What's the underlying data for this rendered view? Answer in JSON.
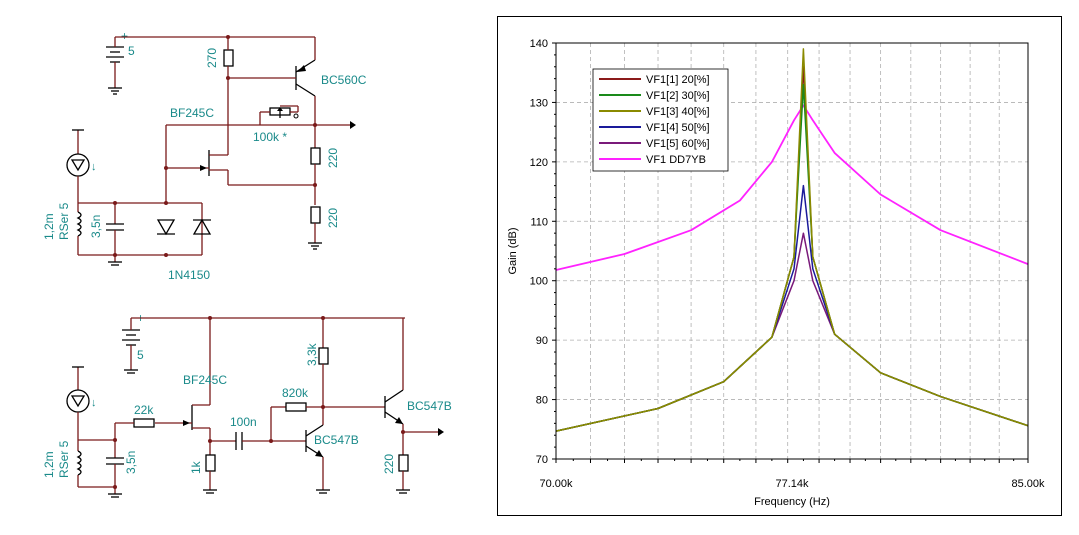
{
  "schematic_top": {
    "battery_label": "5",
    "r_top": "270",
    "q_pnp": "BC560C",
    "jfet": "BF245C",
    "pot": "100k *",
    "r_mid": "220",
    "r_bot": "220",
    "coil_value": "1,2m",
    "coil_rser": "RSer 5",
    "cap": "3,5n",
    "diode": "1N4150"
  },
  "schematic_bottom": {
    "battery_label": "5",
    "jfet": "BF245C",
    "r_gate": "22k",
    "r_source": "1k",
    "cap_coupling": "100n",
    "r_bias": "820k",
    "r_collector": "3,3k",
    "q1": "BC547B",
    "q2": "BC547B",
    "r_emitter": "220",
    "coil_value": "1,2m",
    "coil_rser": "RSer 5",
    "cap": "3,5n"
  },
  "chart_data": {
    "type": "line",
    "xlabel": "Frequency (Hz)",
    "ylabel": "Gain (dB)",
    "xlim": [
      70000,
      85000
    ],
    "ylim": [
      70,
      140
    ],
    "x_ticks": [
      "70.00k",
      "77.14k",
      "85.00k"
    ],
    "y_ticks": [
      "70",
      "80",
      "90",
      "100",
      "110",
      "120",
      "130",
      "140"
    ],
    "x_scale": "log",
    "grid": true,
    "legend_position": "top-left",
    "resonance_hz": 77500,
    "series": [
      {
        "name": "VF1[1]  20[%]",
        "color": "#8b1a1a",
        "peak": 136,
        "x": [
          70000,
          73000,
          75000,
          76500,
          77200,
          77500,
          77800,
          78500,
          80000,
          82000,
          85000
        ],
        "y": [
          74.7,
          78.5,
          83.0,
          90.5,
          104,
          136,
          104,
          91,
          84.5,
          80.5,
          75.6
        ]
      },
      {
        "name": "VF1[2]  30[%]",
        "color": "#1a8a1a",
        "peak": 133,
        "x": [
          70000,
          73000,
          75000,
          76500,
          77200,
          77500,
          77800,
          78500,
          80000,
          82000,
          85000
        ],
        "y": [
          74.7,
          78.5,
          83.0,
          90.5,
          104,
          133,
          104,
          91,
          84.5,
          80.5,
          75.6
        ]
      },
      {
        "name": "VF1[3]  40[%]",
        "color": "#8a8a00",
        "peak": 139,
        "x": [
          70000,
          73000,
          75000,
          76500,
          77200,
          77500,
          77800,
          78500,
          80000,
          82000,
          85000
        ],
        "y": [
          74.7,
          78.5,
          83.0,
          90.5,
          104,
          139,
          104,
          91,
          84.5,
          80.5,
          75.6
        ]
      },
      {
        "name": "VF1[4]  50[%]",
        "color": "#1a1a9a",
        "peak": 116,
        "x": [
          70000,
          73000,
          75000,
          76500,
          77200,
          77500,
          77800,
          78500,
          80000,
          82000,
          85000
        ],
        "y": [
          74.7,
          78.5,
          83.0,
          90.5,
          102,
          116,
          102,
          91,
          84.5,
          80.5,
          75.6
        ]
      },
      {
        "name": "VF1[5]  60[%]",
        "color": "#7a1a7a",
        "peak": 108,
        "x": [
          70000,
          73000,
          75000,
          76500,
          77200,
          77500,
          77800,
          78500,
          80000,
          82000,
          85000
        ],
        "y": [
          74.7,
          78.5,
          83.0,
          90.5,
          100,
          108,
          100,
          91,
          84.5,
          80.5,
          75.6
        ]
      },
      {
        "name": "VF1  DD7YB",
        "color": "#ff22ff",
        "peak": 129.5,
        "x": [
          70000,
          72000,
          74000,
          75500,
          76500,
          77200,
          77500,
          77800,
          78500,
          80000,
          82000,
          85000
        ],
        "y": [
          101.8,
          104.5,
          108.5,
          113.5,
          120,
          127,
          129.5,
          127,
          121.5,
          114.5,
          108.5,
          102.8
        ]
      }
    ]
  }
}
